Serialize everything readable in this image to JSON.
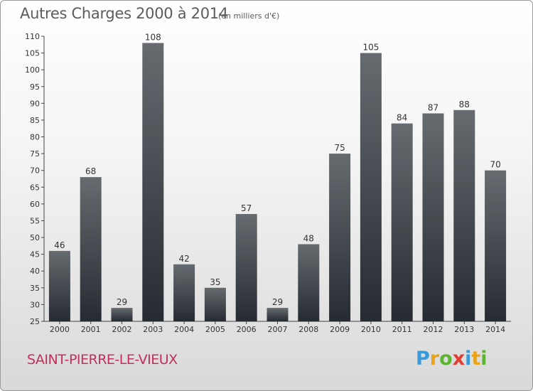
{
  "title": "Autres Charges 2000 à 2014",
  "subtitle": "(en milliers d'€)",
  "commune": "SAINT-PIERRE-LE-VIEUX",
  "logo": {
    "letters": [
      "P",
      "r",
      "o",
      "x",
      "i",
      "t",
      "i"
    ],
    "colors": [
      "#3a9ad9",
      "#e8a317",
      "#5cb531",
      "#e03c31",
      "#3a9ad9",
      "#e8a317",
      "#5cb531"
    ]
  },
  "colors": {
    "bar_top": "#666b70",
    "bar_bottom": "#262b31",
    "title": "#5c5c5c",
    "commune": "#c0305a"
  },
  "chart_data": {
    "type": "bar",
    "title": "Autres Charges 2000 à 2014",
    "subtitle": "(en milliers d'€)",
    "xlabel": "",
    "ylabel": "",
    "categories": [
      "2000",
      "2001",
      "2002",
      "2003",
      "2004",
      "2005",
      "2006",
      "2007",
      "2008",
      "2009",
      "2010",
      "2011",
      "2012",
      "2013",
      "2014"
    ],
    "values": [
      46,
      68,
      29,
      108,
      42,
      35,
      57,
      29,
      48,
      75,
      105,
      84,
      87,
      88,
      70
    ],
    "ylim": [
      25,
      110
    ],
    "yticks": [
      25,
      30,
      35,
      40,
      45,
      50,
      55,
      60,
      65,
      70,
      75,
      80,
      85,
      90,
      95,
      100,
      105,
      110
    ],
    "grid": false,
    "legend": "none"
  }
}
